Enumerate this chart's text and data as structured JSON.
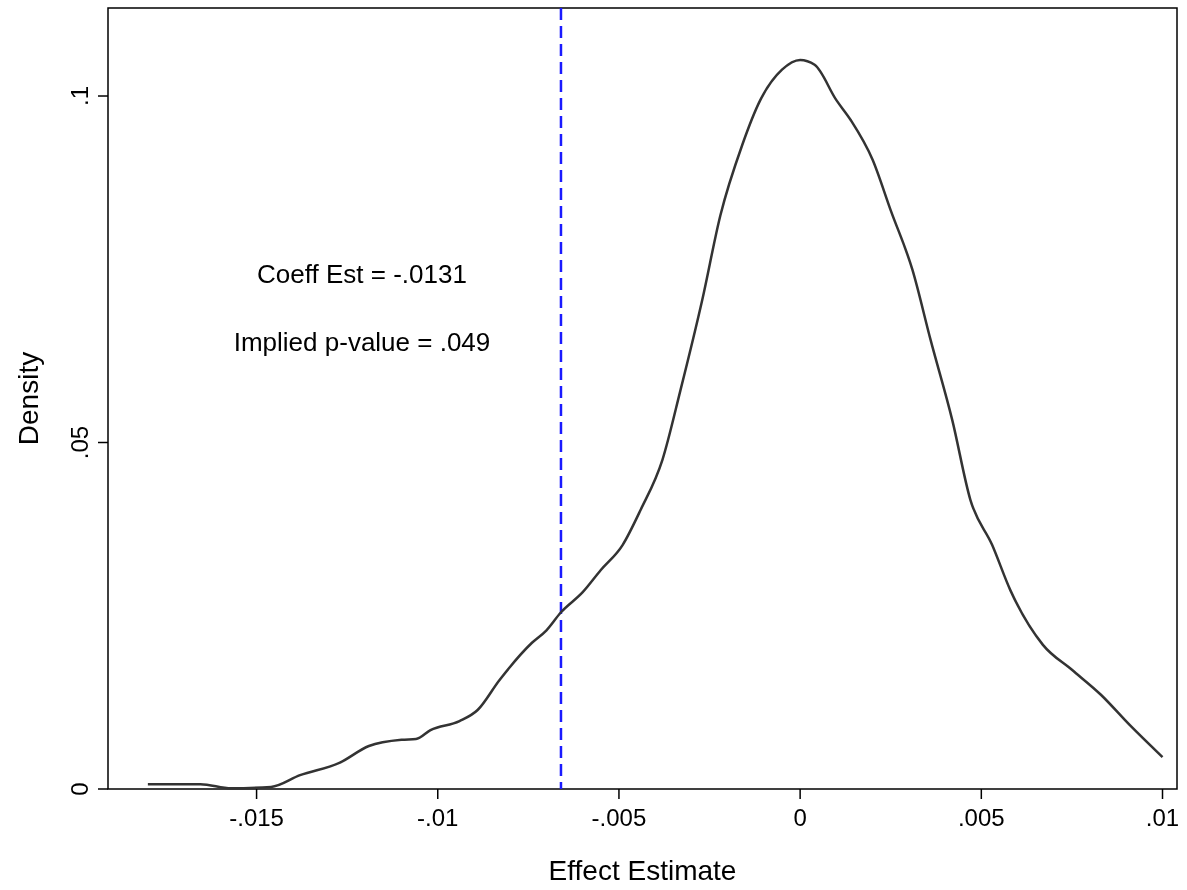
{
  "chart_data": {
    "type": "line",
    "xlabel": "Effect Estimate",
    "ylabel": "Density",
    "xlim": [
      -0.0191,
      0.0104
    ],
    "ylim": [
      0,
      0.1127
    ],
    "xticks": [
      {
        "value": -0.015,
        "label": "-.015"
      },
      {
        "value": -0.01,
        "label": "-.01"
      },
      {
        "value": -0.005,
        "label": "-.005"
      },
      0,
      {
        "value": 0.005,
        "label": ".005"
      },
      {
        "value": 0.01,
        "label": ".01"
      }
    ],
    "yticks": [
      0,
      {
        "value": 0.05,
        "label": ".05"
      },
      {
        "value": 0.1,
        "label": ".1"
      }
    ],
    "grid": false,
    "series": [
      {
        "color": "#333333",
        "x": [
          -0.018,
          -0.01655,
          -0.0157,
          -0.0146,
          -0.0138,
          -0.0127,
          -0.0119,
          -0.011,
          -0.0106,
          -0.0102,
          -0.0094,
          -0.0089,
          -0.0083,
          -0.0074,
          -0.007,
          -0.0066,
          -0.006,
          -0.0055,
          -0.0049,
          -0.0044,
          -0.0038,
          -0.0033,
          -0.0027,
          -0.0022,
          -0.0016,
          -0.0011,
          -0.0005,
          0,
          0.0004,
          0.001,
          0.0014,
          0.002,
          0.0025,
          0.0031,
          0.0036,
          0.0042,
          0.0047,
          0.0053,
          0.0058,
          0.0067,
          0.0075,
          0.0083,
          0.0091,
          0.01
        ],
        "values": [
          0.0007,
          0.0007,
          0.0001,
          0.0003,
          0.002,
          0.0038,
          0.0062,
          0.0071,
          0.0072,
          0.0085,
          0.0098,
          0.0114,
          0.0157,
          0.0211,
          0.0229,
          0.0255,
          0.0284,
          0.0316,
          0.0352,
          0.0403,
          0.0475,
          0.0576,
          0.0706,
          0.0828,
          0.0929,
          0.0994,
          0.1038,
          0.1052,
          0.1045,
          0.0994,
          0.0965,
          0.0908,
          0.0835,
          0.0749,
          0.0648,
          0.0532,
          0.0417,
          0.0352,
          0.0287,
          0.0208,
          0.0172,
          0.0136,
          0.0092,
          0.0046
        ]
      }
    ],
    "ref_lines": [
      {
        "axis": "x",
        "value": -0.0066,
        "color": "#1a1aff",
        "line_style": "dashed"
      }
    ],
    "annotations": [
      "Coeff Est = -.0131",
      "Implied p-value = .049"
    ]
  }
}
